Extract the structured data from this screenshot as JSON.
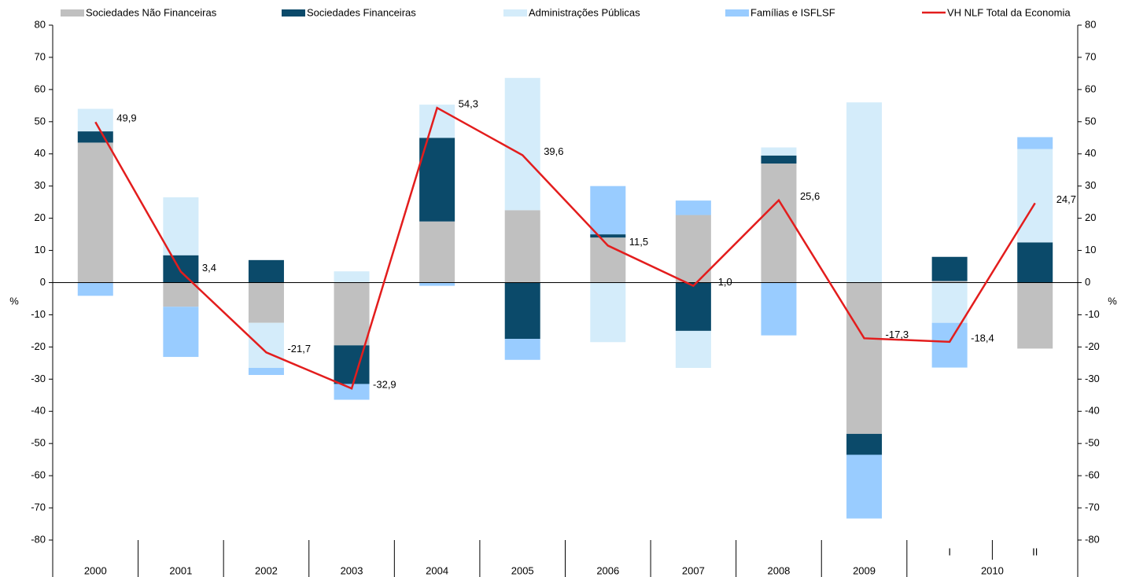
{
  "chart_data": {
    "type": "bar",
    "stacked": true,
    "categories": [
      "2000",
      "2001",
      "2002",
      "2003",
      "2004",
      "2005",
      "2006",
      "2007",
      "2008",
      "2009",
      "I",
      "II"
    ],
    "category_groups": [
      {
        "label": "2010",
        "first": 10,
        "last": 11
      }
    ],
    "series": [
      {
        "name": "Sociedades Não Financeiras",
        "color": "#c0c0c0",
        "values": [
          43.5,
          -7.5,
          -12.5,
          -19.5,
          19,
          22.5,
          14,
          21,
          37,
          -47,
          0.5,
          -20.5
        ]
      },
      {
        "name": "Sociedades Financeiras",
        "color": "#0b4a6a",
        "values": [
          3.5,
          8.5,
          7,
          -12,
          26,
          -17.5,
          1,
          -15,
          2.5,
          -6.5,
          7.5,
          12.5
        ]
      },
      {
        "name": "Administrações Públicas",
        "color": "#d4ecfa",
        "values": [
          7,
          18,
          -14,
          3.5,
          10.3,
          41.1,
          -18.5,
          -11.5,
          2.5,
          56,
          -12.5,
          29
        ]
      },
      {
        "name": "Famílias e ISFLSF",
        "color": "#99ccff",
        "values": [
          -4.1,
          -15.6,
          -2.2,
          -4.9,
          -1,
          -6.5,
          15,
          4.5,
          -16.4,
          -19.8,
          -13.9,
          3.7
        ]
      },
      {
        "name": "VH NLF Total da Economia",
        "type": "line",
        "color": "#e31d1d",
        "values": [
          49.9,
          3.4,
          -21.7,
          -32.9,
          54.3,
          39.6,
          11.5,
          -1.0,
          25.6,
          -17.3,
          -18.4,
          24.7
        ],
        "value_labels": [
          "49,9",
          "3,4",
          "-21,7",
          "-32,9",
          "54,3",
          "39,6",
          "11,5",
          "-1,0",
          "25,6",
          "-17,3",
          "-18,4",
          "24,7"
        ]
      }
    ],
    "ylabel": "%",
    "y2label": "%",
    "ylim": [
      -80,
      80
    ],
    "yticks": [
      -80,
      -70,
      -60,
      -50,
      -40,
      -30,
      -20,
      -10,
      0,
      10,
      20,
      30,
      40,
      50,
      60,
      70,
      80
    ],
    "y2lim": [
      -80,
      80
    ],
    "y2ticks": [
      -80,
      -70,
      -60,
      -50,
      -40,
      -30,
      -20,
      -10,
      0,
      10,
      20,
      30,
      40,
      50,
      60,
      70,
      80
    ]
  }
}
